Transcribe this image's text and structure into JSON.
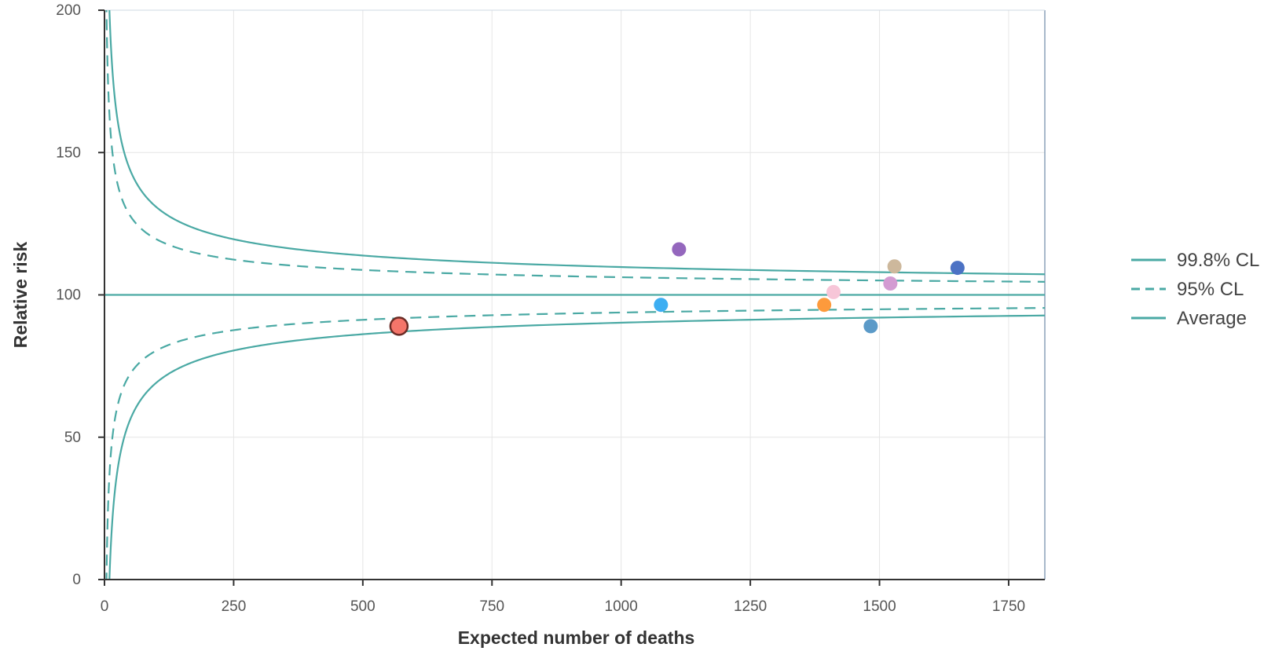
{
  "chart_data": {
    "type": "scatter",
    "title": "",
    "xlabel": "Expected number of deaths",
    "ylabel": "Relative risk",
    "xlim": [
      0,
      1820
    ],
    "ylim": [
      0,
      200
    ],
    "x_ticks": [
      "0",
      "250",
      "500",
      "750",
      "1000",
      "1250",
      "1500",
      "1750"
    ],
    "y_ticks": [
      "0",
      "50",
      "100",
      "150",
      "200"
    ],
    "grid": true,
    "legend_placement": "right",
    "average": 100,
    "series": [
      {
        "name": "99.8% CL",
        "kind": "control-limit",
        "z": 3.09,
        "style": "solid",
        "color": "#4aa9a4"
      },
      {
        "name": "95% CL",
        "kind": "control-limit",
        "z": 1.96,
        "style": "dashed",
        "color": "#4aa9a4"
      },
      {
        "name": "Average",
        "kind": "average",
        "style": "solid",
        "color": "#4aa9a4"
      }
    ],
    "points": [
      {
        "x": 570,
        "y": 89,
        "color": "#f4756a",
        "highlighted": true
      },
      {
        "x": 1077,
        "y": 96.5,
        "color": "#3daef2"
      },
      {
        "x": 1112,
        "y": 116,
        "color": "#9467bd"
      },
      {
        "x": 1393,
        "y": 96.5,
        "color": "#fd9a3c"
      },
      {
        "x": 1411,
        "y": 101,
        "color": "#f7c6d8"
      },
      {
        "x": 1483,
        "y": 89,
        "color": "#5b9ac8"
      },
      {
        "x": 1521,
        "y": 104,
        "color": "#d39bd2"
      },
      {
        "x": 1529,
        "y": 110,
        "color": "#cdb89c"
      },
      {
        "x": 1651,
        "y": 109.5,
        "color": "#4c72c4"
      }
    ]
  }
}
